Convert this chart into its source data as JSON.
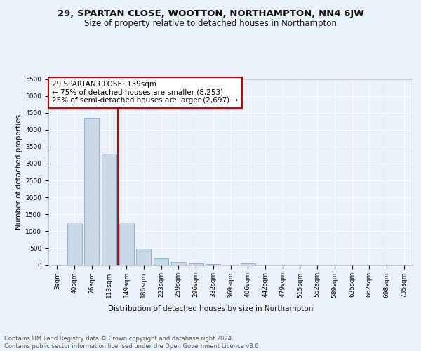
{
  "title": "29, SPARTAN CLOSE, WOOTTON, NORTHAMPTON, NN4 6JW",
  "subtitle": "Size of property relative to detached houses in Northampton",
  "xlabel": "Distribution of detached houses by size in Northampton",
  "ylabel": "Number of detached properties",
  "categories": [
    "3sqm",
    "40sqm",
    "76sqm",
    "113sqm",
    "149sqm",
    "186sqm",
    "223sqm",
    "259sqm",
    "296sqm",
    "332sqm",
    "369sqm",
    "406sqm",
    "442sqm",
    "479sqm",
    "515sqm",
    "552sqm",
    "589sqm",
    "625sqm",
    "662sqm",
    "698sqm",
    "735sqm"
  ],
  "bar_values": [
    0,
    1250,
    4350,
    3300,
    1250,
    480,
    190,
    90,
    60,
    40,
    20,
    50,
    0,
    0,
    0,
    0,
    0,
    0,
    0,
    0,
    0
  ],
  "bar_color": "#c9d9e8",
  "bar_edge_color": "#7a9cbf",
  "vline_color": "#cc0000",
  "annotation_text": "29 SPARTAN CLOSE: 139sqm\n← 75% of detached houses are smaller (8,253)\n25% of semi-detached houses are larger (2,697) →",
  "annotation_box_color": "#ffffff",
  "annotation_box_edge_color": "#cc0000",
  "ylim": [
    0,
    5500
  ],
  "yticks": [
    0,
    500,
    1000,
    1500,
    2000,
    2500,
    3000,
    3500,
    4000,
    4500,
    5000,
    5500
  ],
  "footnote": "Contains HM Land Registry data © Crown copyright and database right 2024.\nContains public sector information licensed under the Open Government Licence v3.0.",
  "bg_color": "#eaf1f8",
  "plot_bg_color": "#eaf1f8",
  "title_fontsize": 9.5,
  "subtitle_fontsize": 8.5,
  "axis_label_fontsize": 7.5,
  "tick_fontsize": 6.5,
  "annotation_fontsize": 7.5,
  "footnote_fontsize": 6.0
}
